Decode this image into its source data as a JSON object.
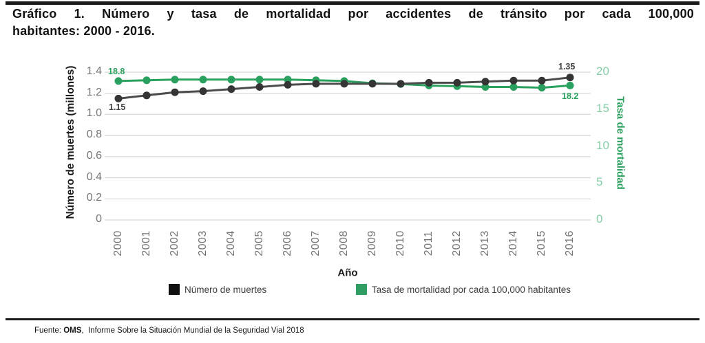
{
  "title": {
    "line1": "Gráfico 1. Número y tasa de mortalidad por accidentes de tránsito por cada 100,000",
    "line2": "habitantes: 2000 - 2016."
  },
  "chart_data": {
    "type": "line",
    "x": [
      2000,
      2001,
      2002,
      2003,
      2004,
      2005,
      2006,
      2007,
      2008,
      2009,
      2010,
      2011,
      2012,
      2013,
      2014,
      2015,
      2016
    ],
    "series": [
      {
        "id": "deaths",
        "name": "Número de muertes",
        "axis": "left",
        "line_color": "#4b4b4b",
        "dot_color": "#353535",
        "values": [
          1.15,
          1.18,
          1.21,
          1.22,
          1.24,
          1.26,
          1.28,
          1.29,
          1.29,
          1.29,
          1.29,
          1.3,
          1.3,
          1.31,
          1.32,
          1.32,
          1.35
        ]
      },
      {
        "id": "rate",
        "name": "Tasa de mortalidad por cada 100,000 habitantes",
        "axis": "right",
        "line_color": "#2aa05e",
        "dot_color": "#2aa05e",
        "values": [
          18.8,
          18.9,
          19.0,
          19.0,
          19.0,
          19.0,
          19.0,
          18.9,
          18.8,
          18.5,
          18.4,
          18.2,
          18.1,
          18.0,
          18.0,
          17.9,
          18.2
        ]
      }
    ],
    "left_axis": {
      "label": "Número de muertes (millones)",
      "range": [
        0,
        1.4
      ],
      "tick_labels": [
        "0",
        "0.2",
        "0.4",
        "0.6",
        "0.8",
        "1.0",
        "1.2",
        "1.4"
      ],
      "tick_values": [
        0,
        0.2,
        0.4,
        0.6,
        0.8,
        1.0,
        1.2,
        1.4
      ]
    },
    "right_axis": {
      "label": "Tasa de mortalidad",
      "range": [
        0,
        20
      ],
      "tick_labels": [
        "0",
        "5",
        "10",
        "15",
        "20"
      ],
      "tick_values": [
        0,
        5,
        10,
        15,
        20
      ]
    },
    "xlabel": "Año",
    "grid": true,
    "legend_position": "bottom",
    "annotations": [
      {
        "text": "18.8",
        "series": "rate",
        "year": 2000,
        "color": "#2aa05e"
      },
      {
        "text": "1.15",
        "series": "deaths",
        "year": 2000,
        "color": "#3f3f3f"
      },
      {
        "text": "1.35",
        "series": "deaths",
        "year": 2016,
        "color": "#3f3f3f"
      },
      {
        "text": "18.2",
        "series": "rate",
        "year": 2016,
        "color": "#2aa05e"
      }
    ],
    "legend": [
      {
        "label": "Número de muertes",
        "color": "#111111"
      },
      {
        "label": "Tasa de mortalidad por cada 100,000 habitantes",
        "color": "#2f9e62"
      }
    ]
  },
  "colors": {
    "rule": "#1a1a1a",
    "grid": "#d6d6d6",
    "axis_gray": "#757575",
    "rate_green": "#2aa05e",
    "rate_light_green": "#85cfa6"
  },
  "footer": {
    "prefix": "Fuente: ",
    "org": "OMS",
    "rest": ",  Informe Sobre la Situación Mundial de la Seguridad Vial 2018"
  }
}
